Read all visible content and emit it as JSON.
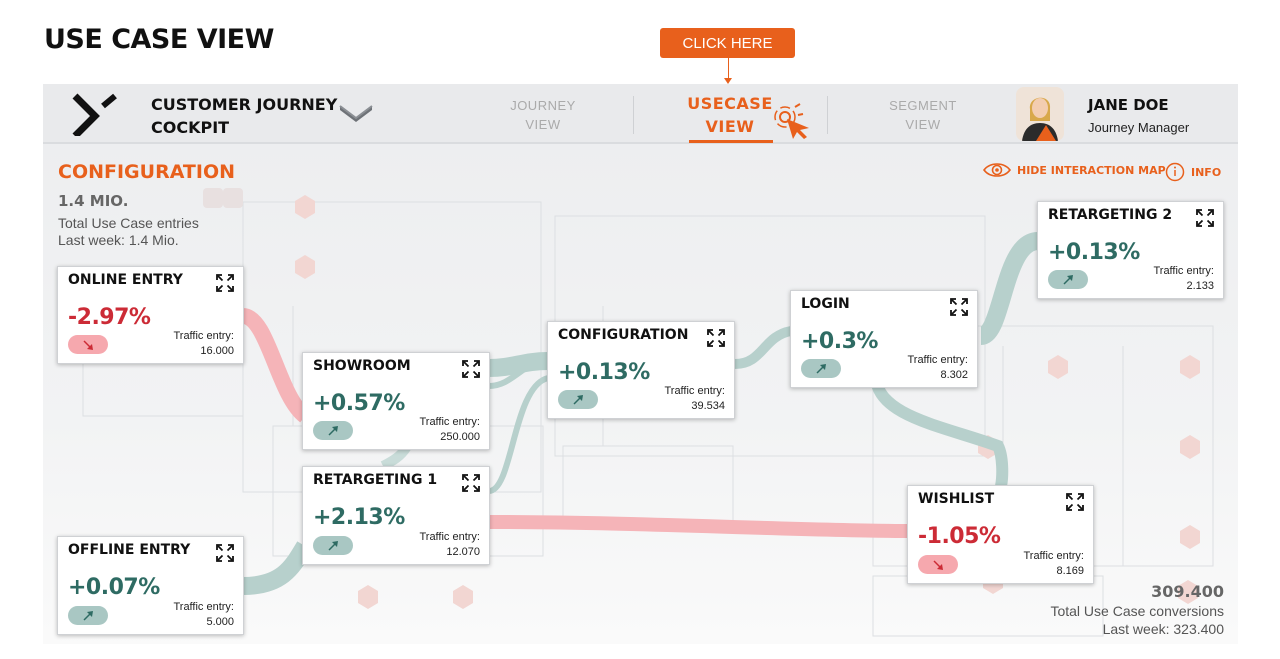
{
  "page_title": "USE CASE VIEW",
  "callout": "CLICK HERE",
  "header": {
    "brand_line1": "CUSTOMER JOURNEY",
    "brand_line2": "COCKPIT",
    "nav": [
      {
        "line1": "JOURNEY",
        "line2": "VIEW"
      },
      {
        "line1": "USECASE",
        "line2": "VIEW"
      },
      {
        "line1": "SEGMENT",
        "line2": "VIEW"
      }
    ],
    "user_name": "JANE DOE",
    "user_role": "Journey Manager"
  },
  "summary": {
    "title": "CONFIGURATION",
    "entries_value": "1.4 MIO.",
    "entries_label": "Total Use Case entries",
    "entries_last_week": "Last week: 1.4 Mio.",
    "conversions_value": "309.400",
    "conversions_label": "Total Use Case conversions",
    "conversions_last_week": "Last week: 323.400"
  },
  "toolbar": {
    "hide_map": "HIDE INTERACTION MAP",
    "info": "INFO"
  },
  "traffic_label": "Traffic entry:",
  "colors": {
    "accent": "#e8601c",
    "positive": "#2e6b63",
    "negative": "#cc2b36",
    "flow_pos": "#b7d0cc",
    "flow_neg": "#f5b4b8"
  },
  "cards": [
    {
      "name": "ONLINE ENTRY",
      "change": "-2.97%",
      "trend": "down",
      "traffic": "16.000"
    },
    {
      "name": "SHOWROOM",
      "change": "+0.57%",
      "trend": "up",
      "traffic": "250.000"
    },
    {
      "name": "RETARGETING 1",
      "change": "+2.13%",
      "trend": "up",
      "traffic": "12.070"
    },
    {
      "name": "OFFLINE ENTRY",
      "change": "+0.07%",
      "trend": "up",
      "traffic": "5.000"
    },
    {
      "name": "CONFIGURATION",
      "change": "+0.13%",
      "trend": "up",
      "traffic": "39.534"
    },
    {
      "name": "LOGIN",
      "change": "+0.3%",
      "trend": "up",
      "traffic": "8.302"
    },
    {
      "name": "RETARGETING 2",
      "change": "+0.13%",
      "trend": "up",
      "traffic": "2.133"
    },
    {
      "name": "WISHLIST",
      "change": "-1.05%",
      "trend": "down",
      "traffic": "8.169"
    }
  ]
}
